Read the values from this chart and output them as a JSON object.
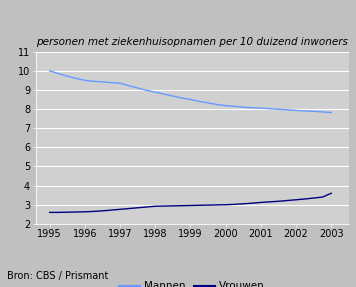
{
  "title": "personen met ziekenhuisopnamen per 10 duizend inwoners",
  "source": "Bron: CBS / Prismant",
  "years": [
    1995,
    1995.25,
    1995.5,
    1995.75,
    1996,
    1996.25,
    1996.5,
    1996.75,
    1997,
    1997.25,
    1997.5,
    1997.75,
    1998,
    1998.25,
    1998.5,
    1998.75,
    1999,
    1999.25,
    1999.5,
    1999.75,
    2000,
    2000.25,
    2000.5,
    2000.75,
    2001,
    2001.25,
    2001.5,
    2001.75,
    2002,
    2002.25,
    2002.5,
    2002.75,
    2003
  ],
  "mannen": [
    10.0,
    9.85,
    9.72,
    9.6,
    9.5,
    9.45,
    9.42,
    9.38,
    9.35,
    9.22,
    9.1,
    8.98,
    8.88,
    8.78,
    8.68,
    8.58,
    8.5,
    8.4,
    8.32,
    8.24,
    8.18,
    8.14,
    8.1,
    8.07,
    8.05,
    8.02,
    7.99,
    7.96,
    7.93,
    7.9,
    7.88,
    7.85,
    7.82
  ],
  "vrouwen": [
    2.6,
    2.6,
    2.61,
    2.62,
    2.63,
    2.65,
    2.68,
    2.72,
    2.76,
    2.8,
    2.84,
    2.88,
    2.92,
    2.93,
    2.94,
    2.95,
    2.96,
    2.97,
    2.98,
    2.99,
    3.0,
    3.02,
    3.05,
    3.08,
    3.12,
    3.15,
    3.18,
    3.22,
    3.26,
    3.3,
    3.35,
    3.4,
    3.6
  ],
  "mannen_color": "#6699ff",
  "vrouwen_color": "#000080",
  "bg_color": "#c0c0c0",
  "plot_bg_color": "#d0d0d0",
  "ylim": [
    2,
    11
  ],
  "yticks": [
    2,
    3,
    4,
    5,
    6,
    7,
    8,
    9,
    10,
    11
  ],
  "xticks": [
    1995,
    1996,
    1997,
    1998,
    1999,
    2000,
    2001,
    2002,
    2003
  ],
  "legend_mannen": "Mannen",
  "legend_vrouwen": "Vrouwen",
  "title_fontsize": 7.5,
  "source_fontsize": 7.0,
  "tick_fontsize": 7.0,
  "legend_fontsize": 7.5
}
